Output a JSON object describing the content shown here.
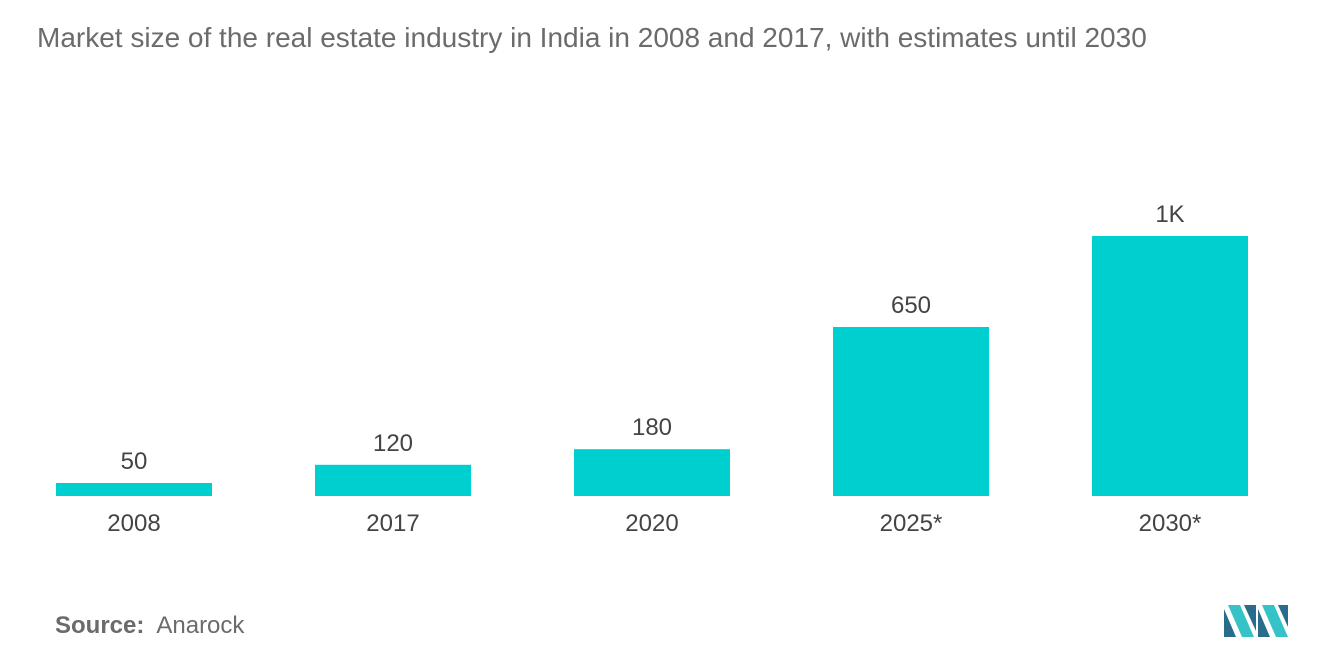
{
  "title": "Market size of the real estate industry in India in 2008 and 2017, with estimates until 2030",
  "source": {
    "label": "Source:",
    "value": "Anarock"
  },
  "chart_data": {
    "type": "bar",
    "title": "Market size of the real estate industry in India in 2008 and 2017, with estimates until 2030",
    "xlabel": "",
    "ylabel": "",
    "categories": [
      "2008",
      "2017",
      "2020",
      "2025*",
      "2030*"
    ],
    "values": [
      50,
      120,
      180,
      650,
      1000
    ],
    "data_labels": [
      "50",
      "120",
      "180",
      "650",
      "1K"
    ],
    "ylim": [
      0,
      1000
    ],
    "grid": false,
    "legend": "none",
    "bar_color": "#00cfd0"
  },
  "colors": {
    "bar": "#00cfd0",
    "text": "#444444",
    "title": "#6b6b6b",
    "logo_dark": "#2a6c8c",
    "logo_light": "#35c3c8"
  }
}
